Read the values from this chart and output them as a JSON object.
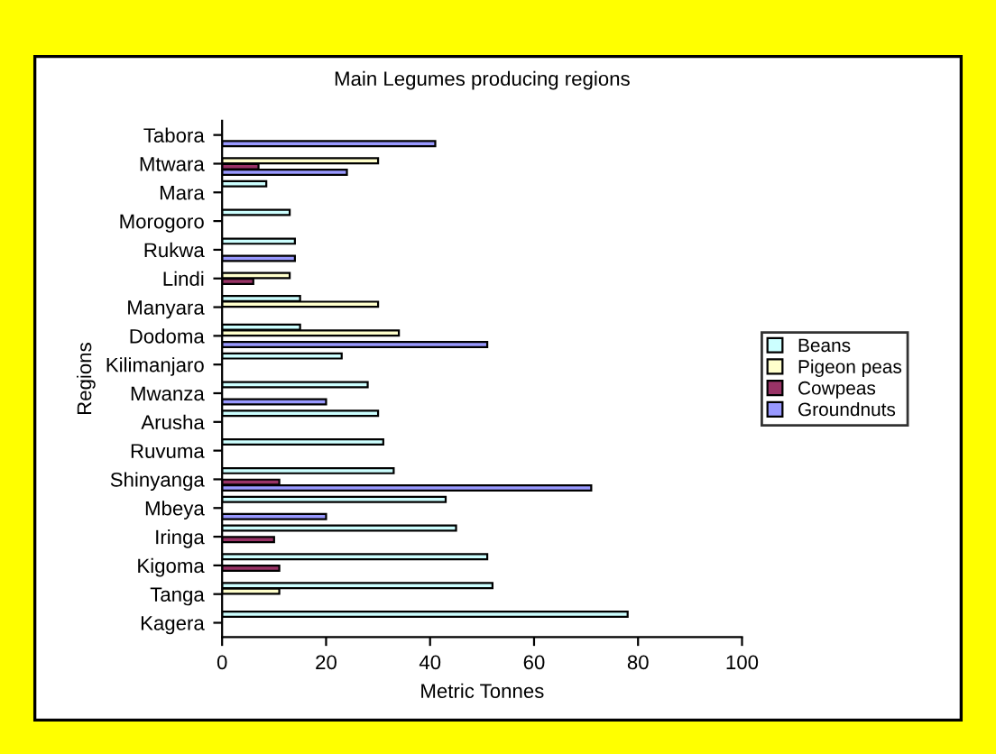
{
  "chart_data": {
    "type": "bar",
    "orientation": "horizontal",
    "title": "Main Legumes producing regions",
    "xlabel": "Metric Tonnes",
    "ylabel": "Regions",
    "categories": [
      "Tabora",
      "Mtwara",
      "Mara",
      "Morogoro",
      "Rukwa",
      "Lindi",
      "Manyara",
      "Dodoma",
      "Kilimanjaro",
      "Mwanza",
      "Arusha",
      "Ruvuma",
      "Shinyanga",
      "Mbeya",
      "Iringa",
      "Kigoma",
      "Tanga",
      "Kagera"
    ],
    "series": [
      {
        "name": "Beans",
        "color": "#ccffff",
        "values": [
          null,
          null,
          8.5,
          13,
          14,
          null,
          15,
          15,
          23,
          28,
          30,
          31,
          33,
          43,
          45,
          51,
          52,
          78
        ]
      },
      {
        "name": "Pigeon peas",
        "color": "#ffffcc",
        "values": [
          null,
          30,
          null,
          null,
          null,
          13,
          30,
          34,
          null,
          null,
          null,
          null,
          null,
          null,
          null,
          null,
          11,
          null
        ]
      },
      {
        "name": "Cowpeas",
        "color": "#993366",
        "values": [
          null,
          7,
          null,
          null,
          null,
          6,
          null,
          null,
          null,
          null,
          null,
          null,
          11,
          null,
          10,
          11,
          null,
          null
        ]
      },
      {
        "name": "Groundnuts",
        "color": "#9999ff",
        "values": [
          41,
          24,
          null,
          null,
          14,
          null,
          null,
          51,
          null,
          20,
          null,
          null,
          71,
          20,
          null,
          null,
          null,
          null
        ]
      }
    ],
    "xlim": [
      0,
      100
    ],
    "xticks": [
      0,
      20,
      40,
      60,
      80,
      100
    ],
    "grid": false,
    "legend": "right"
  }
}
